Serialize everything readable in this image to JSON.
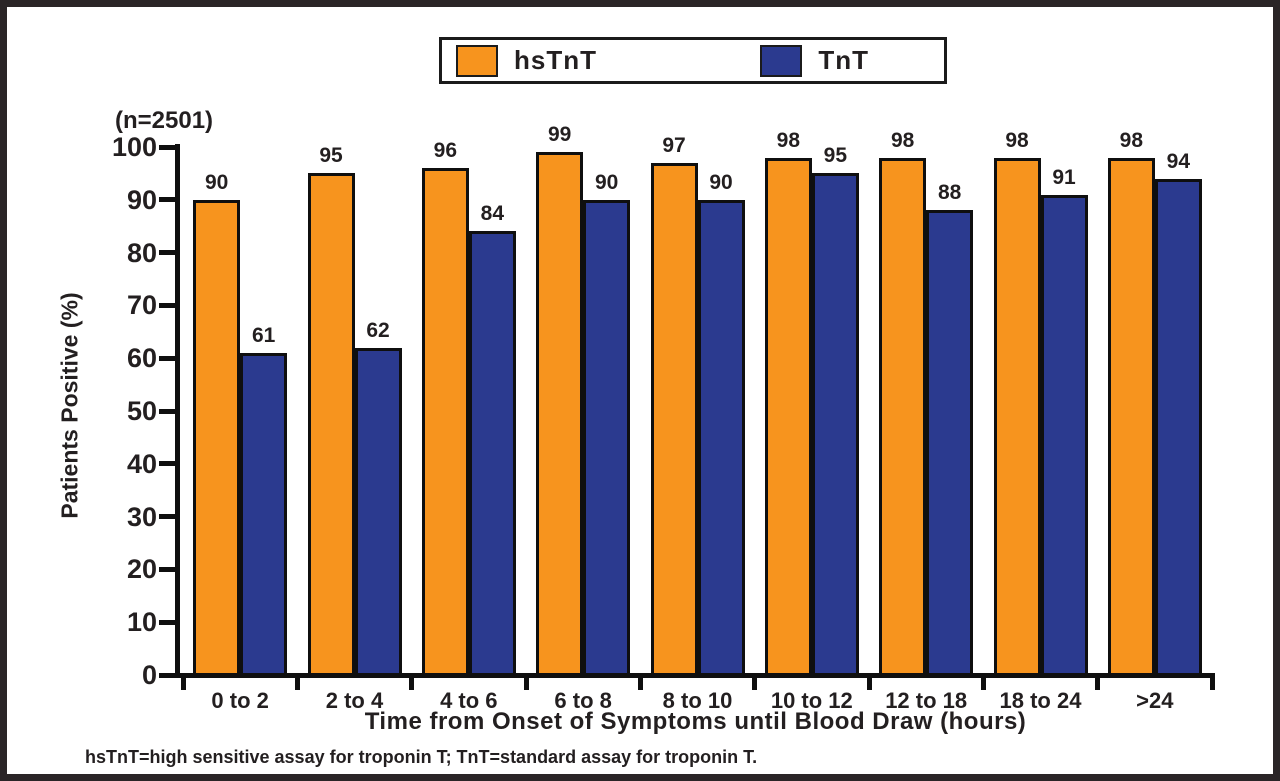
{
  "footnote": "hsTnT=high sensitive assay for troponin T; TnT=standard assay for troponin T.",
  "chart_data": {
    "type": "bar",
    "categories": [
      "0 to 2",
      "2 to 4",
      "4 to 6",
      "6 to 8",
      "8 to 10",
      "10 to 12",
      "12 to 18",
      "18 to 24",
      ">24"
    ],
    "series": [
      {
        "name": "hsTnT",
        "color": "#F7941E",
        "values": [
          90,
          95,
          96,
          99,
          97,
          98,
          98,
          98,
          98
        ]
      },
      {
        "name": "TnT",
        "color": "#2B3A8F",
        "values": [
          61,
          62,
          84,
          90,
          90,
          95,
          88,
          91,
          94
        ]
      }
    ],
    "title": "",
    "annotation": "(n=2501)",
    "xlabel": "Time from Onset of Symptoms until Blood Draw (hours)",
    "ylabel": "Patients Positive (%)",
    "ylim": [
      0,
      100
    ],
    "yticks": [
      0,
      10,
      20,
      30,
      40,
      50,
      60,
      70,
      80,
      90,
      100
    ],
    "grid": false,
    "legend_position": "top",
    "bar_labels": true,
    "colors": {
      "axis": "#0f0f0f",
      "text": "#231f20",
      "background": "#ffffff"
    }
  }
}
